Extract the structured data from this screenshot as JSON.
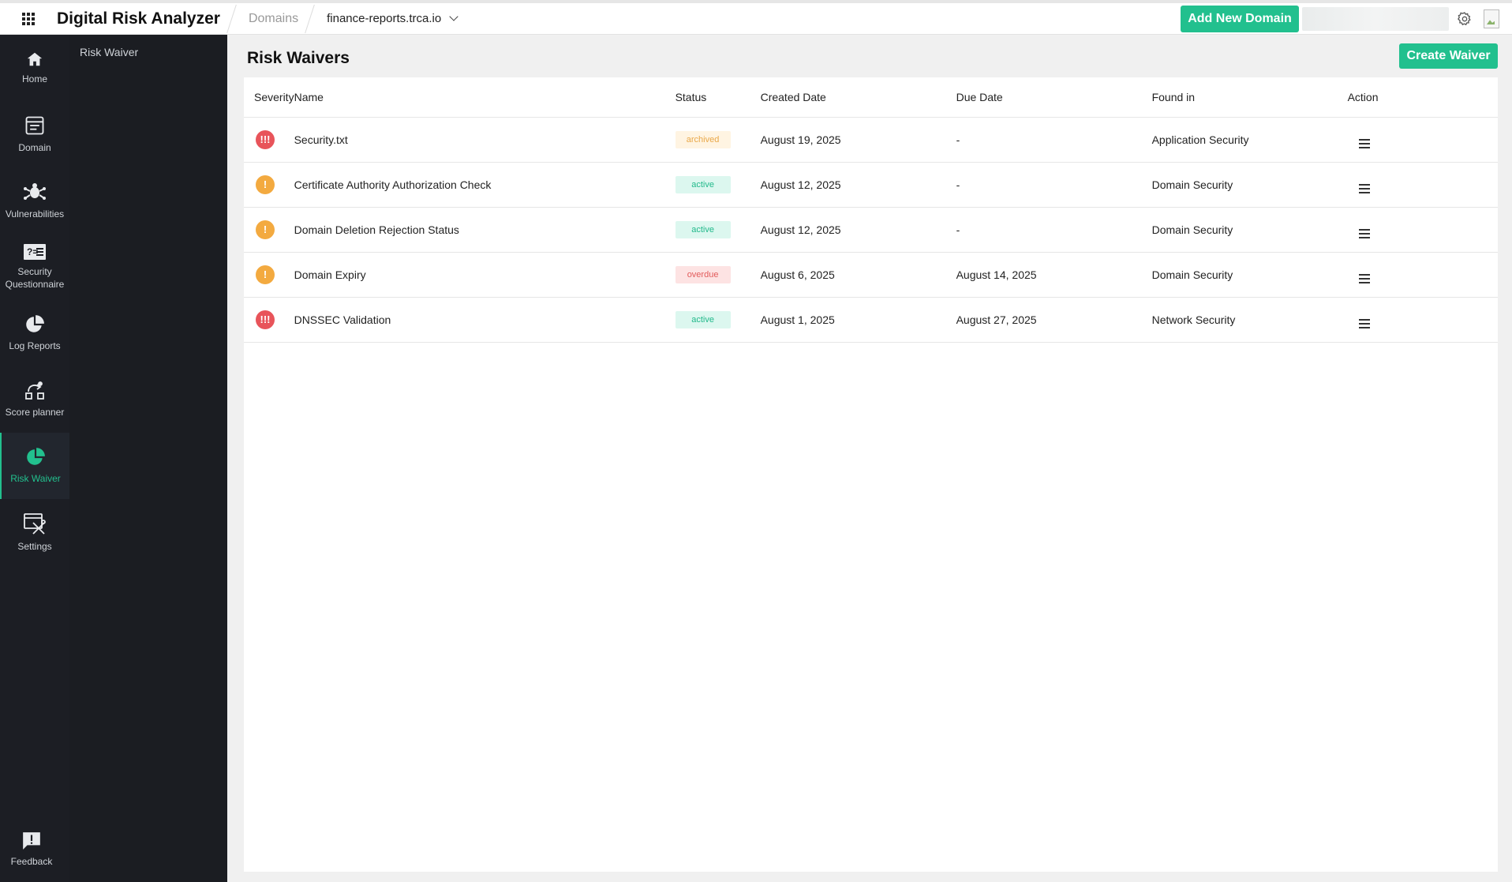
{
  "app": {
    "title": "Digital Risk Analyzer"
  },
  "breadcrumb": {
    "domains": "Domains",
    "selected_domain": "finance-reports.trca.io"
  },
  "header": {
    "add_domain_label": "Add New Domain"
  },
  "rail": {
    "items": [
      {
        "label": "Home",
        "icon": "home-icon"
      },
      {
        "label": "Domain",
        "icon": "domain-icon"
      },
      {
        "label": "Vulnerabilities",
        "icon": "bug-icon"
      },
      {
        "label": "Security Questionnaire",
        "icon": "questionnaire-icon"
      },
      {
        "label": "Log Reports",
        "icon": "pie-chart-icon"
      },
      {
        "label": "Score planner",
        "icon": "score-planner-icon"
      },
      {
        "label": "Risk Waiver",
        "icon": "pie-chart-icon",
        "active": true
      },
      {
        "label": "Settings",
        "icon": "settings-tools-icon"
      }
    ],
    "feedback": "Feedback"
  },
  "subnav": {
    "item": "Risk Waiver"
  },
  "page": {
    "title": "Risk Waivers",
    "create_label": "Create Waiver"
  },
  "table": {
    "headers": [
      "Severity",
      "Name",
      "Status",
      "Created Date",
      "Due Date",
      "Found in",
      "Action"
    ],
    "rows": [
      {
        "severity": "critical",
        "sev_glyph": "!!!",
        "name": "Security.txt",
        "status": "archived",
        "created": "August 19, 2025",
        "due": "-",
        "found_in": "Application Security"
      },
      {
        "severity": "medium",
        "sev_glyph": "!",
        "name": "Certificate Authority Authorization Check",
        "status": "active",
        "created": "August 12, 2025",
        "due": "-",
        "found_in": "Domain Security"
      },
      {
        "severity": "medium",
        "sev_glyph": "!",
        "name": "Domain Deletion Rejection Status",
        "status": "active",
        "created": "August 12, 2025",
        "due": "-",
        "found_in": "Domain Security"
      },
      {
        "severity": "medium",
        "sev_glyph": "!",
        "name": "Domain Expiry",
        "status": "overdue",
        "created": "August 6, 2025",
        "due": "August 14, 2025",
        "found_in": "Domain Security"
      },
      {
        "severity": "critical",
        "sev_glyph": "!!!",
        "name": "DNSSEC Validation",
        "status": "active",
        "created": "August 1, 2025",
        "due": "August 27, 2025",
        "found_in": "Network Security"
      }
    ]
  },
  "colors": {
    "accent": "#22c08e",
    "critical": "#e8545a",
    "medium": "#f3aa40",
    "rail_bg": "#1c1e24"
  }
}
